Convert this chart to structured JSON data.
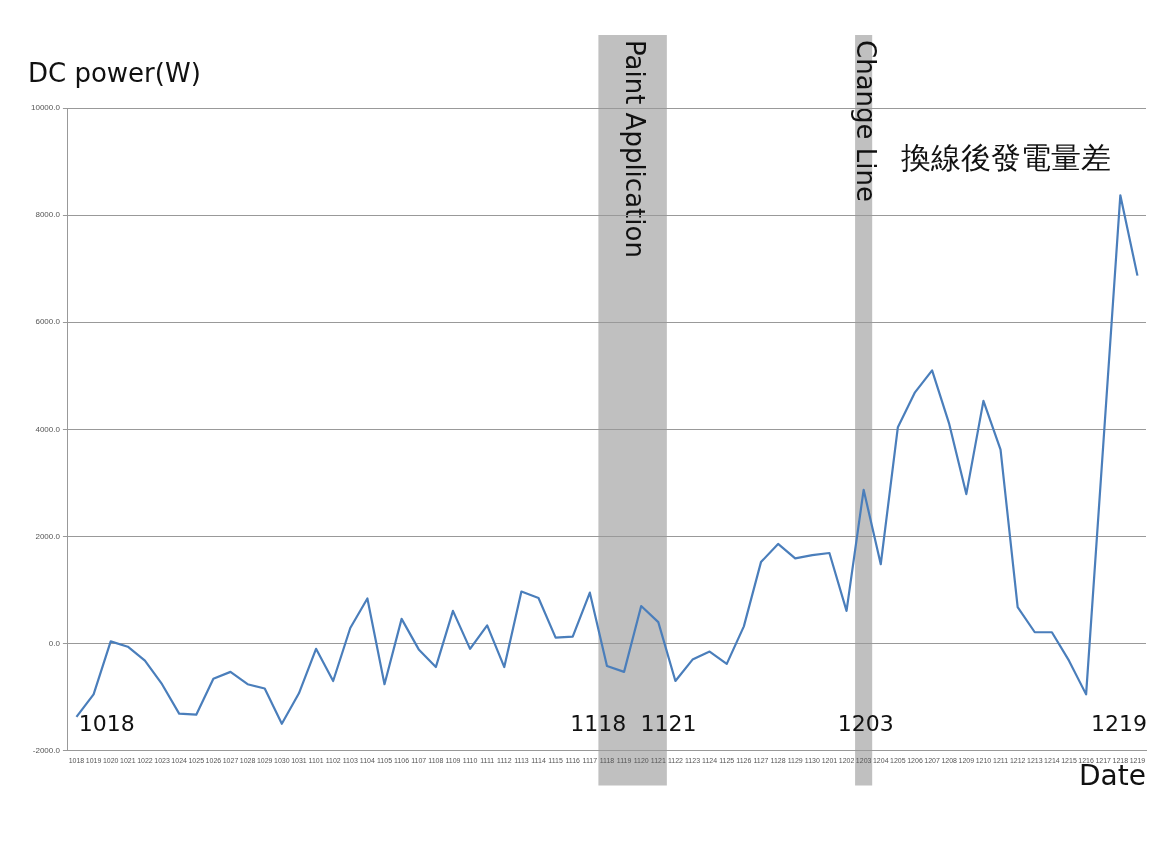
{
  "chart_data": {
    "type": "line",
    "ylabel": "DC power(W)",
    "xlabel": "Date",
    "categories": [
      "1018",
      "1019",
      "1020",
      "1021",
      "1022",
      "1023",
      "1024",
      "1025",
      "1026",
      "1027",
      "1028",
      "1029",
      "1030",
      "1031",
      "1101",
      "1102",
      "1103",
      "1104",
      "1105",
      "1106",
      "1107",
      "1108",
      "1109",
      "1110",
      "1111",
      "1112",
      "1113",
      "1114",
      "1115",
      "1116",
      "1117",
      "1118",
      "1119",
      "1120",
      "1121",
      "1122",
      "1123",
      "1124",
      "1125",
      "1126",
      "1127",
      "1128",
      "1129",
      "1130",
      "1201",
      "1202",
      "1203",
      "1204",
      "1205",
      "1206",
      "1207",
      "1208",
      "1209",
      "1210",
      "1211",
      "1212",
      "1213",
      "1214",
      "1215",
      "1216",
      "1217",
      "1218",
      "1219"
    ],
    "series": [
      {
        "color": "#4a7ebb",
        "values": [
          -1370,
          -950,
          40,
          -60,
          -320,
          -760,
          -1310,
          -1330,
          -660,
          -530,
          -760,
          -840,
          -1500,
          -930,
          -100,
          -700,
          290,
          840,
          -760,
          460,
          -110,
          -440,
          610,
          -100,
          340,
          -440,
          970,
          850,
          110,
          130,
          950,
          -420,
          -530,
          700,
          400,
          -700,
          -300,
          -150,
          -380,
          320,
          1520,
          1860,
          1590,
          1650,
          1690,
          610,
          2870,
          1480,
          4040,
          4690,
          5100,
          4100,
          2790,
          4530,
          3620,
          680,
          210,
          210,
          -320,
          -950,
          3700,
          8370,
          6870
        ]
      }
    ],
    "ylim": [
      -2000,
      10000
    ],
    "yticks": [
      {
        "value": -2000,
        "label": "-2000.0"
      },
      {
        "value": 0,
        "label": "0.0"
      },
      {
        "value": 2000,
        "label": "2000.0"
      },
      {
        "value": 4000,
        "label": "4000.0"
      },
      {
        "value": 6000,
        "label": "6000.0"
      },
      {
        "value": 8000,
        "label": "8000.0"
      },
      {
        "value": 10000,
        "label": "10000.0"
      }
    ],
    "grid": "y",
    "legend": false,
    "marker": "none",
    "line_style": "solid",
    "bands": [
      {
        "axis": "x",
        "from": "1118",
        "to": "1121",
        "label": "Paint Application",
        "color": "#c0c0c0"
      },
      {
        "axis": "x",
        "from": "1203",
        "to": "1203",
        "label": "Change Line",
        "color": "#c0c0c0"
      }
    ],
    "annotations": [
      "1018",
      "1118",
      "1121",
      "1203",
      "1219",
      "換線後發電量差"
    ]
  }
}
